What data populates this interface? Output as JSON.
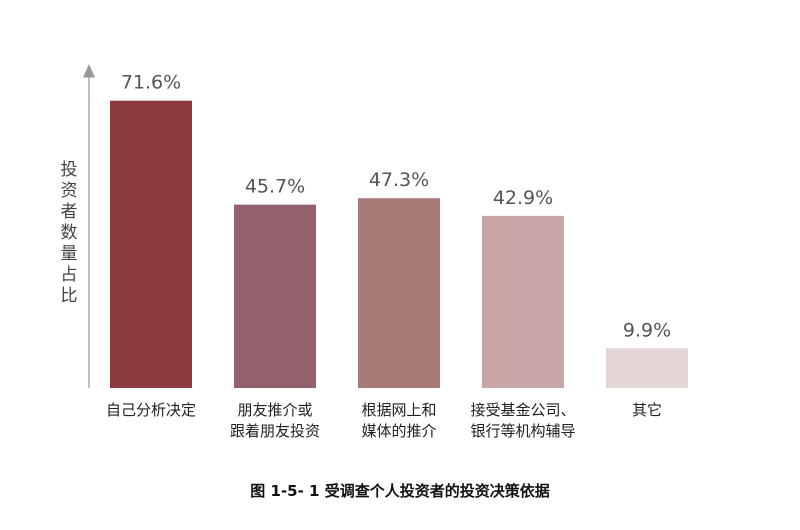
{
  "chart_data": {
    "type": "bar",
    "ylabel": "投资者数量占比",
    "categories": [
      [
        "自己分析决定"
      ],
      [
        "朋友推介或",
        "跟着朋友投资"
      ],
      [
        "根据网上和",
        "媒体的推介"
      ],
      [
        "接受基金公司、",
        "银行等机构辅导"
      ],
      [
        "其它"
      ]
    ],
    "values": [
      71.6,
      45.7,
      47.3,
      42.9,
      9.9
    ],
    "value_labels": [
      "71.6%",
      "45.7%",
      "47.3%",
      "42.9%",
      "9.9%"
    ],
    "colors": [
      "#8b3a3e",
      "#93606b",
      "#a87b79",
      "#c8a6a5",
      "#e6d6d6"
    ],
    "ylim": [
      0,
      80
    ],
    "grid": false,
    "legend": "none"
  },
  "caption": "图 1-5- 1  受调查个人投资者的投资决策依据"
}
